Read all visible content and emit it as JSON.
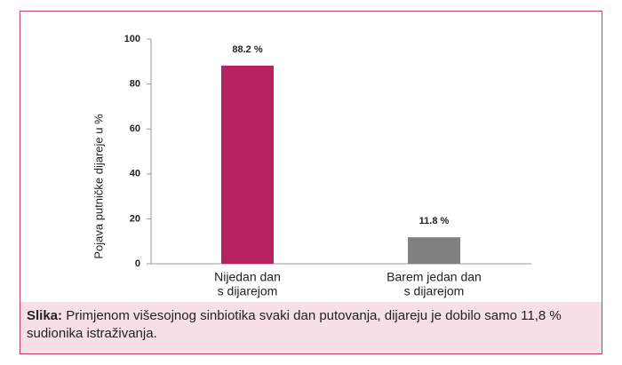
{
  "chart_data": {
    "type": "bar",
    "ylabel": "Pojava putničke dijareje u %",
    "categories": [
      [
        "Nijedan dan",
        "s dijarejom"
      ],
      [
        "Barem jedan dan",
        "s dijarejom"
      ]
    ],
    "values": [
      88.2,
      11.8
    ],
    "value_labels": [
      "88.2 %",
      "11.8 %"
    ],
    "colors": [
      "#b5225f",
      "#808080"
    ],
    "ylim": [
      0,
      100
    ],
    "yticks": [
      0,
      20,
      40,
      60,
      80,
      100
    ],
    "grid": false
  },
  "caption": {
    "label": "Slika:",
    "text": "Primjenom višesojnog sinbiotika svaki dan putovanja, dijareju je dobilo samo 11,8 % sudionika istraživanja."
  }
}
